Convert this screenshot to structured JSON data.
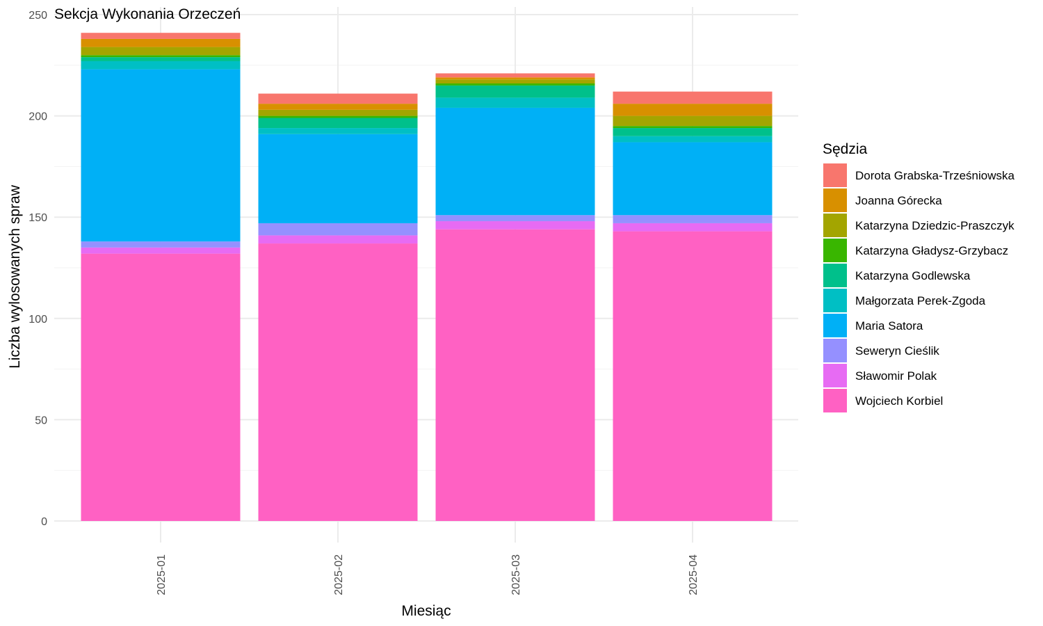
{
  "chart_data": {
    "type": "bar",
    "stacked": true,
    "title": "Sekcja Wykonania Orzeczeń",
    "xlabel": "Miesiąc",
    "ylabel": "Liczba wylosowanych spraw",
    "ylim": [
      0,
      250
    ],
    "yticks": [
      0,
      50,
      100,
      150,
      200,
      250
    ],
    "grid": true,
    "legend": {
      "title": "Sędzia",
      "placement": "right"
    },
    "categories": [
      "2025-01",
      "2025-02",
      "2025-03",
      "2025-04"
    ],
    "series": [
      {
        "name": "Wojciech Korbiel",
        "color": "#FF61C3",
        "values": [
          132,
          137,
          144,
          143
        ]
      },
      {
        "name": "Sławomir Polak",
        "color": "#E76BF3",
        "values": [
          3,
          4,
          4,
          4
        ]
      },
      {
        "name": "Seweryn Cieślik",
        "color": "#9590FF",
        "values": [
          3,
          6,
          3,
          4
        ]
      },
      {
        "name": "Maria Satora",
        "color": "#00B0F6",
        "values": [
          85,
          44,
          53,
          36
        ]
      },
      {
        "name": "Małgorzata Perek-Zgoda",
        "color": "#00BFC4",
        "values": [
          4,
          3,
          5,
          3
        ]
      },
      {
        "name": "Katarzyna Godlewska",
        "color": "#00C08B",
        "values": [
          2,
          5,
          6,
          4
        ]
      },
      {
        "name": "Katarzyna Gładysz-Grzybacz",
        "color": "#39B600",
        "values": [
          1,
          1,
          1,
          1
        ]
      },
      {
        "name": "Katarzyna Dziedzic-Praszczyk",
        "color": "#A3A500",
        "values": [
          4,
          3,
          2,
          5
        ]
      },
      {
        "name": "Joanna Górecka",
        "color": "#D89000",
        "values": [
          4,
          3,
          1,
          6
        ]
      },
      {
        "name": "Dorota Grabska-Trześniowska",
        "color": "#F8766D",
        "values": [
          3,
          5,
          2,
          6
        ]
      }
    ]
  }
}
